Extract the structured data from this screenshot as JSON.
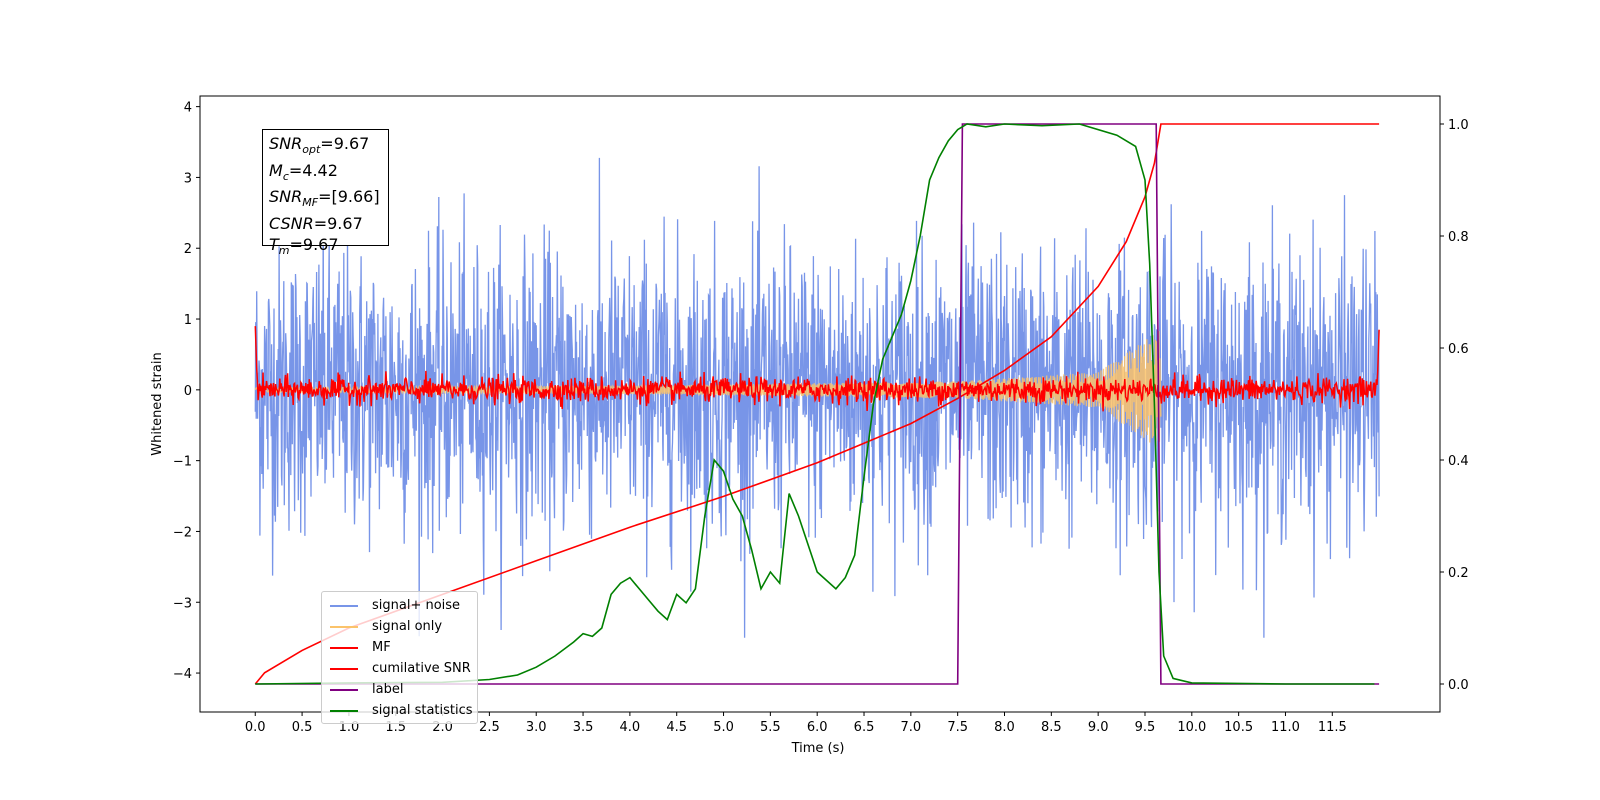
{
  "chart_data": {
    "type": "line",
    "xlabel": "Time (s)",
    "ylabel": "Whitened strain",
    "xlim": [
      -0.59,
      12.65
    ],
    "ylim_left": [
      -4.55,
      4.15
    ],
    "ylim_right": [
      -0.05,
      1.05
    ],
    "x_ticks": [
      "0.0",
      "0.5",
      "1.0",
      "1.5",
      "2.0",
      "2.5",
      "3.0",
      "3.5",
      "4.0",
      "4.5",
      "5.0",
      "5.5",
      "6.0",
      "6.5",
      "7.0",
      "7.5",
      "8.0",
      "8.5",
      "9.0",
      "9.5",
      "10.0",
      "10.5",
      "11.0",
      "11.5"
    ],
    "y_ticks_left": [
      "4",
      "3",
      "2",
      "1",
      "0",
      "−1",
      "−2",
      "−3",
      "−4"
    ],
    "y_ticks_right": [
      "1.0",
      "0.8",
      "0.6",
      "0.4",
      "0.2",
      "0.0"
    ],
    "annotation": {
      "snr_opt": "9.67",
      "mc": "4.42",
      "snr_mf": "[9.66]",
      "csnr": "9.67",
      "tm": "9.67"
    },
    "series": [
      {
        "name": "signal+ noise",
        "color": "#7895e8",
        "axis": "left",
        "std": 1.0,
        "x_range": [
          0.0,
          12.0
        ]
      },
      {
        "name": "signal only",
        "color": "#fbc36a",
        "axis": "left",
        "envelope": {
          "x": [
            0.0,
            4.0,
            7.5,
            9.0,
            9.67
          ],
          "amp": [
            0.03,
            0.06,
            0.12,
            0.25,
            0.85
          ]
        }
      },
      {
        "name": "MF",
        "color": "#ff0000",
        "axis": "left",
        "std": 0.09,
        "x_range": [
          0.0,
          12.0
        ]
      },
      {
        "name": "cumilative SNR",
        "color": "#ff0000",
        "axis": "right",
        "x": [
          0.0,
          0.1,
          0.5,
          1.0,
          2.0,
          3.0,
          4.0,
          5.0,
          6.0,
          6.5,
          7.0,
          7.5,
          8.0,
          8.5,
          9.0,
          9.3,
          9.5,
          9.6,
          9.67,
          12.0
        ],
        "y": [
          0.0,
          0.02,
          0.06,
          0.1,
          0.16,
          0.22,
          0.28,
          0.335,
          0.395,
          0.43,
          0.465,
          0.51,
          0.56,
          0.62,
          0.71,
          0.79,
          0.87,
          0.93,
          1.0,
          1.0
        ]
      },
      {
        "name": "label",
        "color": "#800080",
        "axis": "right",
        "x": [
          0.0,
          7.5,
          7.55,
          9.62,
          9.67,
          12.0
        ],
        "y": [
          0.0,
          0.0,
          1.0,
          1.0,
          0.0,
          0.0
        ]
      },
      {
        "name": "signal statistics",
        "color": "#008000",
        "axis": "right",
        "x": [
          0.0,
          1.0,
          2.0,
          2.5,
          2.8,
          3.0,
          3.2,
          3.4,
          3.5,
          3.6,
          3.7,
          3.8,
          3.9,
          4.0,
          4.1,
          4.2,
          4.3,
          4.4,
          4.5,
          4.6,
          4.7,
          4.8,
          4.9,
          5.0,
          5.1,
          5.2,
          5.3,
          5.4,
          5.5,
          5.6,
          5.7,
          5.8,
          6.0,
          6.2,
          6.3,
          6.4,
          6.5,
          6.6,
          6.7,
          6.8,
          6.9,
          7.0,
          7.1,
          7.2,
          7.3,
          7.4,
          7.5,
          7.6,
          7.8,
          8.0,
          8.4,
          8.8,
          9.2,
          9.4,
          9.5,
          9.55,
          9.6,
          9.65,
          9.7,
          9.8,
          10.0,
          11.0,
          11.95
        ],
        "y": [
          0.0,
          0.002,
          0.003,
          0.008,
          0.016,
          0.03,
          0.05,
          0.075,
          0.09,
          0.085,
          0.1,
          0.16,
          0.18,
          0.19,
          0.17,
          0.15,
          0.13,
          0.115,
          0.16,
          0.145,
          0.17,
          0.3,
          0.4,
          0.38,
          0.33,
          0.3,
          0.24,
          0.17,
          0.2,
          0.18,
          0.34,
          0.3,
          0.2,
          0.17,
          0.19,
          0.23,
          0.37,
          0.5,
          0.58,
          0.62,
          0.66,
          0.72,
          0.8,
          0.9,
          0.94,
          0.97,
          0.99,
          1.0,
          0.995,
          1.0,
          0.997,
          1.0,
          0.98,
          0.96,
          0.9,
          0.75,
          0.5,
          0.2,
          0.05,
          0.01,
          0.002,
          0.0,
          0.0
        ]
      }
    ]
  }
}
